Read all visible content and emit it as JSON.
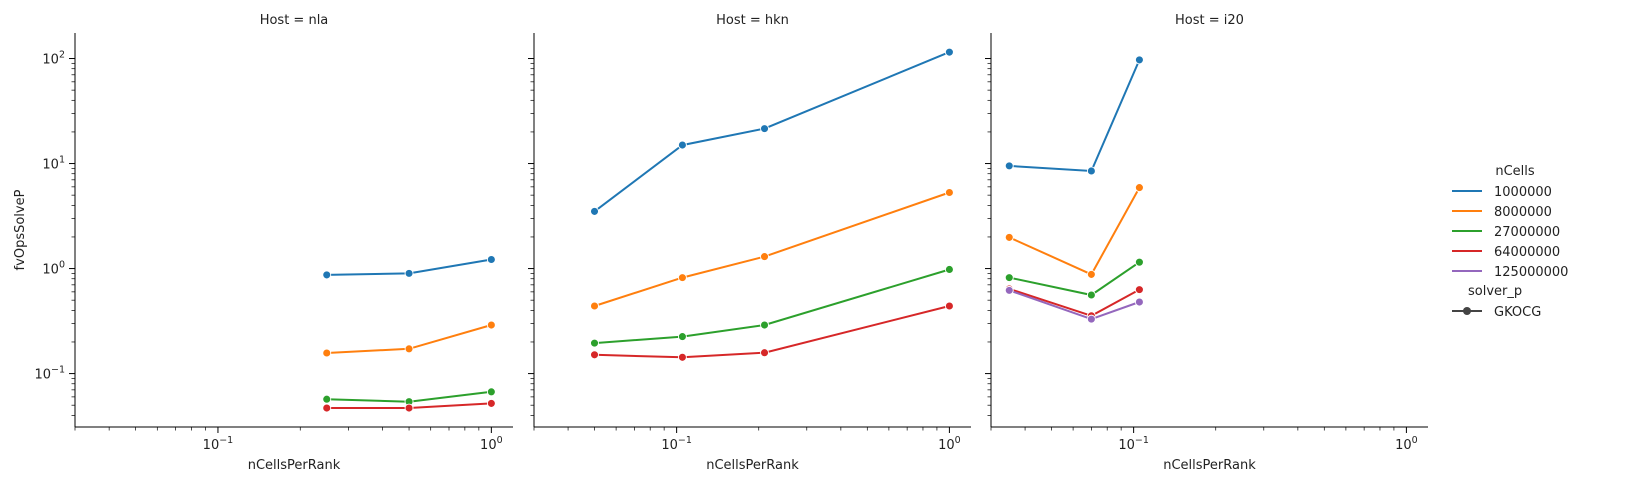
{
  "figure": {
    "ylabel": "fvOpsSolveP",
    "legend_title": "nCells",
    "style_title": "solver_p",
    "style_entry": "GKOCG"
  },
  "colors": {
    "1000000": "#1f77b4",
    "8000000": "#ff7f0e",
    "27000000": "#2ca02c",
    "64000000": "#d62728",
    "125000000": "#9467bd"
  },
  "chart_data": [
    {
      "type": "line",
      "title": "Host = nla",
      "xlabel": "nCellsPerRank",
      "ylabel": "fvOpsSolveP",
      "xscale": "log",
      "yscale": "log",
      "xlim": [
        0.03,
        1.2
      ],
      "ylim": [
        0.031,
        175
      ],
      "xticks": [
        {
          "value": 0.1,
          "label": "10^-1"
        },
        {
          "value": 1,
          "label": "10^0"
        }
      ],
      "yticks": [
        {
          "value": 0.1,
          "label": "10^-1"
        },
        {
          "value": 1,
          "label": "10^0"
        },
        {
          "value": 10,
          "label": "10^1"
        },
        {
          "value": 100,
          "label": "10^2"
        }
      ],
      "series": [
        {
          "name": "1000000",
          "x": [
            0.25,
            0.5,
            1.0
          ],
          "y": [
            0.87,
            0.9,
            1.22
          ]
        },
        {
          "name": "8000000",
          "x": [
            0.25,
            0.5,
            1.0
          ],
          "y": [
            0.157,
            0.172,
            0.29
          ]
        },
        {
          "name": "27000000",
          "x": [
            0.25,
            0.5,
            1.0
          ],
          "y": [
            0.057,
            0.054,
            0.067
          ]
        },
        {
          "name": "64000000",
          "x": [
            0.25,
            0.5,
            1.0
          ],
          "y": [
            0.047,
            0.047,
            0.052
          ]
        }
      ]
    },
    {
      "type": "line",
      "title": "Host = hkn",
      "xlabel": "nCellsPerRank",
      "xscale": "log",
      "yscale": "log",
      "xlim": [
        0.03,
        1.2
      ],
      "ylim": [
        0.031,
        175
      ],
      "xticks": [
        {
          "value": 0.1,
          "label": "10^-1"
        },
        {
          "value": 1,
          "label": "10^0"
        }
      ],
      "series": [
        {
          "name": "1000000",
          "x": [
            0.05,
            0.105,
            0.21,
            1.0
          ],
          "y": [
            3.5,
            15.0,
            21.5,
            115.0
          ]
        },
        {
          "name": "8000000",
          "x": [
            0.05,
            0.105,
            0.21,
            1.0
          ],
          "y": [
            0.44,
            0.82,
            1.3,
            5.3
          ]
        },
        {
          "name": "27000000",
          "x": [
            0.05,
            0.105,
            0.21,
            1.0
          ],
          "y": [
            0.195,
            0.225,
            0.29,
            0.98
          ]
        },
        {
          "name": "64000000",
          "x": [
            0.05,
            0.105,
            0.21,
            1.0
          ],
          "y": [
            0.151,
            0.143,
            0.158,
            0.44
          ]
        }
      ]
    },
    {
      "type": "line",
      "title": "Host = i20",
      "xlabel": "nCellsPerRank",
      "xscale": "log",
      "yscale": "log",
      "xlim": [
        0.03,
        1.2
      ],
      "ylim": [
        0.031,
        175
      ],
      "xticks": [
        {
          "value": 0.1,
          "label": "10^-1"
        },
        {
          "value": 1,
          "label": "10^0"
        }
      ],
      "series": [
        {
          "name": "1000000",
          "x": [
            0.035,
            0.07,
            0.105
          ],
          "y": [
            9.5,
            8.5,
            97.0
          ]
        },
        {
          "name": "8000000",
          "x": [
            0.035,
            0.07,
            0.105
          ],
          "y": [
            1.98,
            0.88,
            5.9
          ]
        },
        {
          "name": "27000000",
          "x": [
            0.035,
            0.07,
            0.105
          ],
          "y": [
            0.82,
            0.56,
            1.15
          ]
        },
        {
          "name": "64000000",
          "x": [
            0.035,
            0.07,
            0.105
          ],
          "y": [
            0.64,
            0.355,
            0.63
          ]
        },
        {
          "name": "125000000",
          "x": [
            0.035,
            0.07,
            0.105
          ],
          "y": [
            0.62,
            0.33,
            0.48
          ]
        }
      ]
    }
  ]
}
